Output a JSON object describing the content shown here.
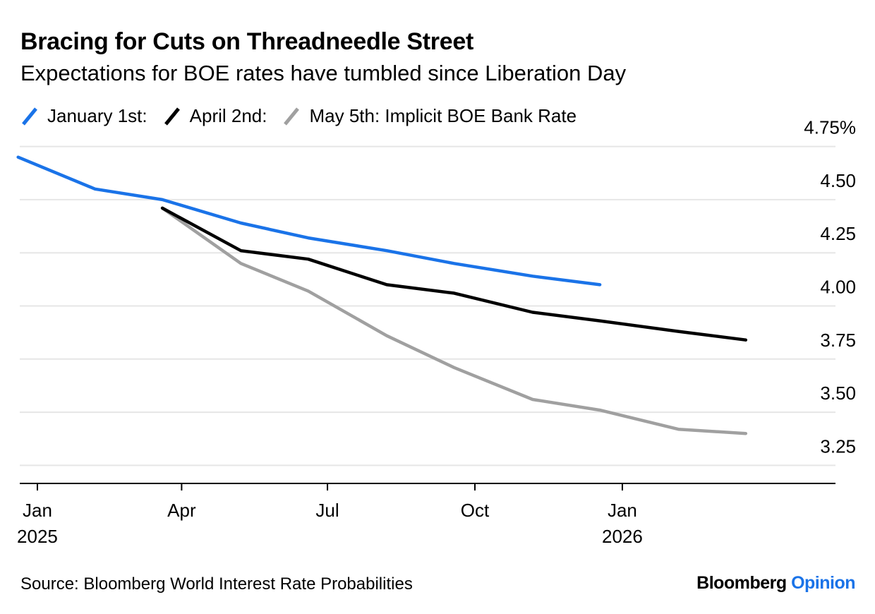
{
  "title": "Bracing for Cuts on Threadneedle Street",
  "subtitle": "Expectations for BOE rates have tumbled since Liberation Day",
  "source": "Source: Bloomberg World Interest Rate Probabilities",
  "brand": {
    "part1": "Bloomberg",
    "part2": "Opinion"
  },
  "colors": {
    "january": "#1a73e8",
    "april": "#000000",
    "may": "#a0a0a0",
    "grid": "#e6e6e6"
  },
  "chart_data": {
    "type": "line",
    "title": "Bracing for Cuts on Threadneedle Street",
    "subtitle": "Expectations for BOE rates have tumbled since Liberation Day",
    "xlabel": "",
    "ylabel": "",
    "ylim": [
      3.165,
      4.825
    ],
    "yticks": [
      {
        "value": 4.75,
        "label": "4.75%"
      },
      {
        "value": 4.5,
        "label": "4.50"
      },
      {
        "value": 4.25,
        "label": "4.25"
      },
      {
        "value": 4.0,
        "label": "4.00"
      },
      {
        "value": 3.75,
        "label": "3.75"
      },
      {
        "value": 3.5,
        "label": "3.50"
      },
      {
        "value": 3.25,
        "label": "3.25"
      }
    ],
    "xlim": [
      "2024-12-21",
      "2026-05-14"
    ],
    "xticks": [
      {
        "date": "2025-01-01",
        "label": "Jan",
        "year": "2025"
      },
      {
        "date": "2025-04-01",
        "label": "Apr",
        "year": ""
      },
      {
        "date": "2025-07-01",
        "label": "Jul",
        "year": ""
      },
      {
        "date": "2025-10-01",
        "label": "Oct",
        "year": ""
      },
      {
        "date": "2026-01-01",
        "label": "Jan",
        "year": "2026"
      }
    ],
    "grid": true,
    "legend_position": "top-left",
    "series": [
      {
        "name": "January 1st:",
        "color": "#1a73e8",
        "points": [
          [
            "2024-12-20",
            4.7
          ],
          [
            "2025-02-06",
            4.55
          ],
          [
            "2025-03-20",
            4.5
          ],
          [
            "2025-05-08",
            4.39
          ],
          [
            "2025-06-19",
            4.32
          ],
          [
            "2025-08-07",
            4.26
          ],
          [
            "2025-09-18",
            4.2
          ],
          [
            "2025-11-06",
            4.14
          ],
          [
            "2025-12-18",
            4.1
          ]
        ]
      },
      {
        "name": "April 2nd:",
        "color": "#000000",
        "points": [
          [
            "2025-03-20",
            4.46
          ],
          [
            "2025-05-08",
            4.26
          ],
          [
            "2025-06-19",
            4.22
          ],
          [
            "2025-08-07",
            4.1
          ],
          [
            "2025-09-18",
            4.06
          ],
          [
            "2025-11-06",
            3.97
          ],
          [
            "2025-12-18",
            3.93
          ],
          [
            "2026-02-05",
            3.88
          ],
          [
            "2026-03-19",
            3.84
          ]
        ]
      },
      {
        "name": "May 5th: Implicit BOE Bank Rate",
        "color": "#a0a0a0",
        "points": [
          [
            "2025-03-20",
            4.46
          ],
          [
            "2025-05-08",
            4.2
          ],
          [
            "2025-06-19",
            4.07
          ],
          [
            "2025-08-07",
            3.86
          ],
          [
            "2025-09-18",
            3.71
          ],
          [
            "2025-11-06",
            3.56
          ],
          [
            "2025-12-18",
            3.51
          ],
          [
            "2026-02-05",
            3.42
          ],
          [
            "2026-03-19",
            3.4
          ]
        ]
      }
    ]
  }
}
